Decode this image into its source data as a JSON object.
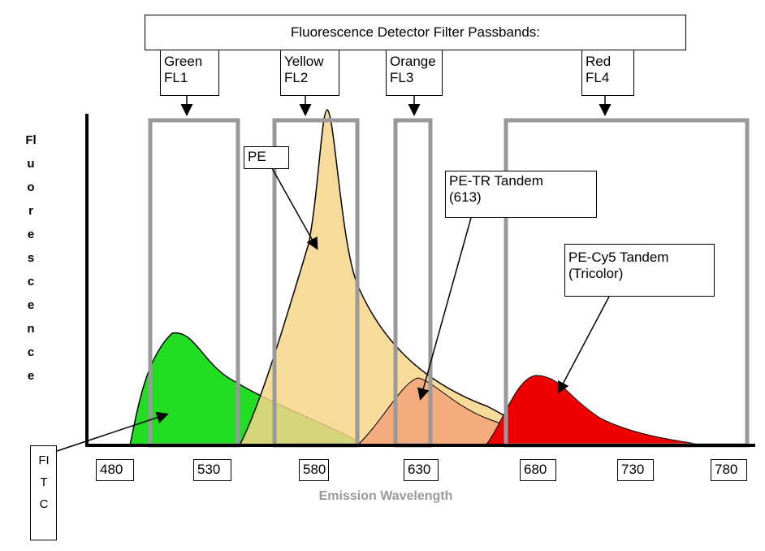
{
  "header": {
    "title": "Fluorescence Detector Filter Passbands:"
  },
  "filters": [
    {
      "name": "Green",
      "channel": "FL1"
    },
    {
      "name": "Yellow",
      "channel": "FL2"
    },
    {
      "name": "Orange",
      "channel": "FL3"
    },
    {
      "name": "Red",
      "channel": "FL4"
    }
  ],
  "axes": {
    "y_label": "Fluorescence",
    "x_label": "Emission Wavelength",
    "x_ticks": [
      "480",
      "530",
      "580",
      "630",
      "680",
      "730",
      "780"
    ]
  },
  "annotations": {
    "fitc": "FITC",
    "pe": "PE",
    "pe_tr": [
      "PE-TR Tandem",
      "(613)"
    ],
    "pe_cy5": [
      "PE-Cy5 Tandem",
      "(Tricolor)"
    ]
  }
}
